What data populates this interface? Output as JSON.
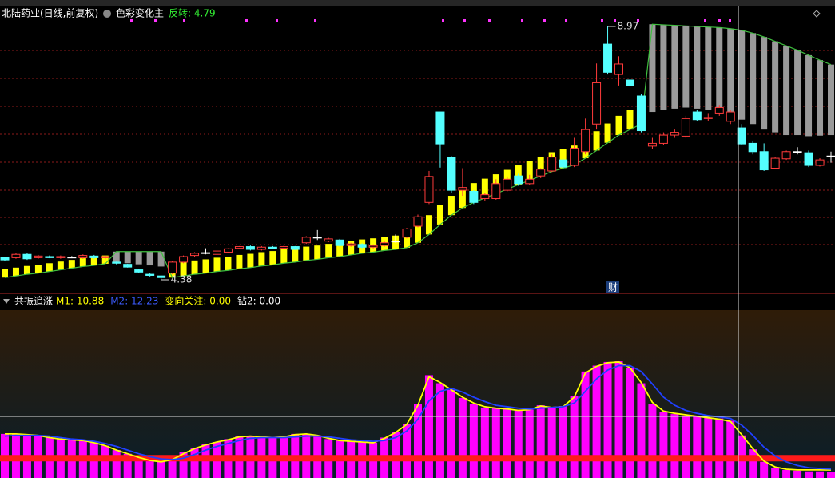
{
  "header": {
    "title": "北陆药业(日线,前复权)",
    "indicator": "色彩变化主",
    "indicator_value": "反转: 4.79",
    "marker": "财"
  },
  "chart_data": [
    {
      "type": "candlestick",
      "up_color": "#ff3b3b",
      "down_color": "#54ffff",
      "flat_color": "#ffffff",
      "open": [
        4.78,
        4.78,
        4.84,
        4.78,
        4.8,
        4.78,
        4.79,
        4.78,
        4.81,
        4.78,
        4.7,
        4.66,
        4.56,
        4.48,
        4.45,
        4.5,
        4.7,
        4.82,
        4.87,
        4.84,
        4.88,
        4.95,
        4.98,
        4.93,
        4.97,
        4.95,
        4.98,
        5.05,
        5.15,
        5.08,
        5.1,
        5.0,
        5.02,
        4.97,
        5.0,
        5.08,
        5.15,
        5.35,
        5.78,
        7.42,
        6.6,
        6.0,
        5.98,
        5.85,
        5.85,
        6.0,
        6.26,
        6.12,
        6.26,
        6.35,
        6.55,
        6.45,
        6.7,
        7.2,
        8.65,
        8.1,
        8.0,
        7.71,
        6.8,
        6.85,
        7.0,
        6.98,
        7.42,
        7.3,
        7.4,
        7.25,
        7.13,
        6.85,
        6.7,
        6.4,
        6.57,
        6.7,
        6.68,
        6.45,
        6.62
      ],
      "high": [
        4.8,
        4.86,
        4.86,
        4.83,
        4.82,
        4.82,
        4.81,
        4.84,
        4.83,
        4.82,
        4.71,
        4.67,
        4.58,
        4.5,
        4.46,
        4.72,
        4.82,
        4.88,
        4.95,
        4.92,
        4.95,
        4.99,
        5.0,
        4.99,
        4.99,
        5.0,
        4.99,
        5.17,
        5.28,
        5.14,
        5.12,
        5.05,
        5.04,
        5.02,
        5.07,
        5.2,
        5.32,
        5.56,
        6.35,
        7.42,
        6.62,
        6.4,
        6.0,
        5.95,
        6.2,
        6.25,
        6.3,
        6.28,
        6.4,
        6.65,
        6.58,
        6.95,
        7.3,
        8.3,
        8.97,
        8.43,
        8.05,
        7.75,
        6.95,
        7.05,
        7.1,
        7.35,
        7.45,
        7.4,
        7.55,
        7.45,
        7.2,
        6.9,
        6.85,
        6.6,
        6.72,
        6.78,
        6.72,
        6.58,
        6.7
      ],
      "low": [
        4.72,
        4.76,
        4.74,
        4.76,
        4.77,
        4.76,
        4.77,
        4.76,
        4.76,
        4.75,
        4.66,
        4.6,
        4.5,
        4.44,
        4.38,
        4.48,
        4.68,
        4.8,
        4.84,
        4.83,
        4.87,
        4.93,
        4.91,
        4.91,
        4.93,
        4.93,
        4.92,
        5.03,
        5.1,
        5.06,
        4.98,
        4.98,
        4.95,
        4.95,
        4.98,
        5.05,
        5.13,
        5.33,
        5.75,
        6.41,
        5.95,
        5.9,
        5.75,
        5.8,
        5.83,
        5.98,
        6.08,
        6.1,
        6.22,
        6.33,
        6.4,
        6.42,
        6.65,
        7.1,
        8.1,
        7.9,
        7.7,
        7.05,
        6.75,
        6.82,
        6.95,
        6.95,
        7.25,
        7.25,
        7.35,
        7.2,
        6.82,
        6.65,
        6.35,
        6.38,
        6.55,
        6.65,
        6.42,
        6.43,
        6.5
      ],
      "close": [
        4.74,
        4.84,
        4.76,
        4.81,
        4.78,
        4.8,
        4.79,
        4.82,
        4.78,
        4.8,
        4.68,
        4.61,
        4.52,
        4.46,
        4.42,
        4.7,
        4.8,
        4.86,
        4.87,
        4.9,
        4.94,
        4.98,
        4.93,
        4.97,
        4.95,
        4.98,
        4.93,
        5.15,
        5.15,
        5.12,
        5.0,
        5.03,
        4.97,
        5.0,
        5.05,
        5.08,
        5.3,
        5.52,
        6.25,
        6.84,
        6.0,
        6.05,
        5.78,
        5.92,
        6.12,
        6.2,
        6.12,
        6.2,
        6.38,
        6.6,
        6.42,
        6.76,
        7.1,
        7.95,
        8.14,
        8.29,
        7.9,
        7.08,
        6.85,
        7.0,
        7.05,
        7.3,
        7.28,
        7.32,
        7.5,
        7.42,
        6.84,
        6.7,
        6.37,
        6.58,
        6.7,
        6.7,
        6.45,
        6.55,
        6.62
      ],
      "high_label": "8.97",
      "low_label": "4.38",
      "indicator": {
        "line_color": "#3fbf3f",
        "up_color": "#ffff00",
        "down_color": "#9a9a9a",
        "line": [
          4.42,
          4.45,
          4.48,
          4.5,
          4.53,
          4.56,
          4.59,
          4.62,
          4.64,
          4.67,
          4.89,
          4.89,
          4.89,
          4.89,
          4.89,
          4.42,
          4.45,
          4.48,
          4.5,
          4.53,
          4.55,
          4.58,
          4.6,
          4.63,
          4.65,
          4.68,
          4.7,
          4.73,
          4.75,
          4.78,
          4.8,
          4.83,
          4.86,
          4.88,
          4.91,
          4.93,
          4.96,
          5.05,
          5.2,
          5.38,
          5.55,
          5.68,
          5.78,
          5.86,
          5.94,
          6.02,
          6.1,
          6.18,
          6.26,
          6.34,
          6.4,
          6.46,
          6.58,
          6.72,
          6.86,
          7.0,
          7.1,
          7.2,
          9.01,
          9.0,
          8.99,
          8.98,
          8.97,
          8.96,
          8.95,
          8.93,
          8.9,
          8.85,
          8.78,
          8.7,
          8.62,
          8.54,
          8.45,
          8.36,
          8.28
        ],
        "bar": [
          4.57,
          4.6,
          4.63,
          4.65,
          4.68,
          4.71,
          4.74,
          4.77,
          4.79,
          4.82,
          4.7,
          4.68,
          4.66,
          4.64,
          4.62,
          4.62,
          4.7,
          4.73,
          4.75,
          4.78,
          4.8,
          4.83,
          4.85,
          4.88,
          4.9,
          4.93,
          4.95,
          4.98,
          5.0,
          5.03,
          5.05,
          5.08,
          5.11,
          5.13,
          5.16,
          5.18,
          5.21,
          5.4,
          5.55,
          5.73,
          5.9,
          6.03,
          6.13,
          6.21,
          6.29,
          6.37,
          6.45,
          6.53,
          6.61,
          6.69,
          6.75,
          6.81,
          6.93,
          7.07,
          7.21,
          7.35,
          7.45,
          7.55,
          7.42,
          7.45,
          7.48,
          7.5,
          7.48,
          7.45,
          7.4,
          7.35,
          7.28,
          7.2,
          7.1,
          7.05,
          7.0,
          7.0,
          6.98,
          6.99,
          7.0
        ]
      }
    },
    {
      "type": "bar-line",
      "title": "共振追涨",
      "legend": [
        {
          "text": "M1: 10.88",
          "color": "#ffff00"
        },
        {
          "text": "M2: 12.23",
          "color": "#3b5bff"
        },
        {
          "text": "变向关注: 0.00",
          "color": "#ffff00"
        },
        {
          "text": "钻2: 0.00",
          "color": "#ffffff"
        }
      ],
      "color": "#ff00ff",
      "values": [
        60,
        60,
        59,
        58,
        55,
        53,
        52,
        51,
        48,
        44,
        38,
        33,
        28,
        24,
        22,
        26,
        35,
        41,
        46,
        49,
        53,
        57,
        57,
        56,
        55,
        57,
        60,
        60,
        58,
        53,
        51,
        50,
        49,
        48,
        55,
        63,
        74,
        101,
        140,
        129,
        120,
        109,
        101,
        96,
        95,
        94,
        92,
        93,
        99,
        96,
        98,
        112,
        145,
        153,
        158,
        159,
        150,
        129,
        101,
        90,
        87,
        85,
        84,
        82,
        81,
        78,
        58,
        39,
        22,
        14,
        11,
        10,
        9,
        9,
        8
      ],
      "series": [
        {
          "color": "#ffff00",
          "values": [
            60,
            60,
            59,
            58,
            55,
            53,
            52,
            51,
            48,
            44,
            38,
            33,
            28,
            24,
            22,
            25,
            33,
            40,
            45,
            49,
            52,
            56,
            57,
            56,
            55,
            56,
            59,
            60,
            58,
            54,
            51,
            50,
            49,
            48,
            54,
            62,
            73,
            99,
            138,
            130,
            120,
            110,
            102,
            97,
            95,
            94,
            92,
            93,
            98,
            96,
            97,
            110,
            143,
            152,
            157,
            158,
            150,
            130,
            103,
            91,
            88,
            86,
            84,
            82,
            80,
            77,
            59,
            40,
            23,
            15,
            12,
            11,
            11,
            11,
            10.88
          ]
        },
        {
          "color": "#2040ff",
          "values": [
            57,
            58,
            58,
            58,
            57,
            55,
            53,
            52,
            50,
            47,
            43,
            38,
            33,
            29,
            26,
            25,
            27,
            32,
            38,
            43,
            47,
            51,
            54,
            55,
            55,
            55,
            56,
            57,
            57,
            56,
            54,
            52,
            51,
            50,
            51,
            55,
            64,
            80,
            105,
            118,
            122,
            117,
            110,
            104,
            99,
            97,
            95,
            94,
            95,
            96,
            97,
            102,
            118,
            135,
            147,
            153,
            153,
            145,
            128,
            110,
            99,
            92,
            88,
            85,
            83,
            81,
            72,
            58,
            42,
            30,
            22,
            17,
            14,
            13,
            12.23
          ]
        }
      ],
      "ref_line": {
        "value": 27,
        "color": "#ff1a1a"
      }
    }
  ]
}
